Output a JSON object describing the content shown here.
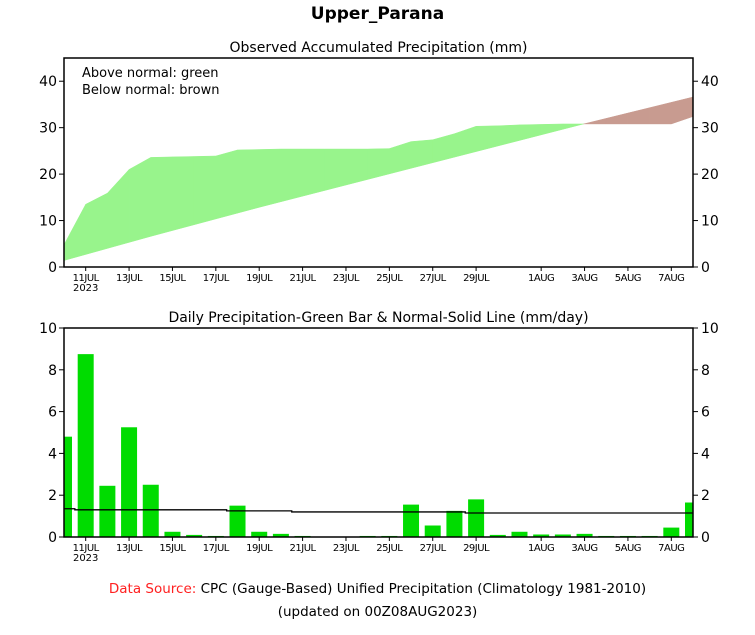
{
  "title": "Upper_Parana",
  "footer": {
    "source_label": "Data Source:",
    "source_text": " CPC (Gauge-Based) Unified Precipitation (Climatology 1981-2010)",
    "updated": "(updated on 00Z08AUG2023)"
  },
  "colors": {
    "above_normal": "#98f48c",
    "below_normal": "#c89b90",
    "bar": "#00dc00",
    "axis": "#000000",
    "source_label": "#ff2020"
  },
  "chart_data": [
    {
      "type": "area",
      "title": "Observed Accumulated Precipitation (mm)",
      "legend": [
        "Above normal: green",
        "Below normal: brown"
      ],
      "legend_position": "top-left",
      "ylim": [
        0,
        45
      ],
      "yticks": [
        0,
        10,
        20,
        30,
        40
      ],
      "xtick_labels": [
        {
          "day": 1,
          "label": "11JUL",
          "sub": "2023"
        },
        {
          "day": 3,
          "label": "13JUL"
        },
        {
          "day": 5,
          "label": "15JUL"
        },
        {
          "day": 7,
          "label": "17JUL"
        },
        {
          "day": 9,
          "label": "19JUL"
        },
        {
          "day": 11,
          "label": "21JUL"
        },
        {
          "day": 13,
          "label": "23JUL"
        },
        {
          "day": 15,
          "label": "25JUL"
        },
        {
          "day": 17,
          "label": "27JUL"
        },
        {
          "day": 19,
          "label": "29JUL"
        },
        {
          "day": 22,
          "label": "1AUG"
        },
        {
          "day": 24,
          "label": "3AUG"
        },
        {
          "day": 26,
          "label": "5AUG"
        },
        {
          "day": 28,
          "label": "7AUG"
        }
      ],
      "x_start": "10JUL2023",
      "x_end": "8AUG2023",
      "series": [
        {
          "name": "Observed",
          "values": [
            4.8,
            13.5,
            15.9,
            21.0,
            23.6,
            23.7,
            23.8,
            23.9,
            25.2,
            25.3,
            25.4,
            25.4,
            25.4,
            25.4,
            25.4,
            25.5,
            27.0,
            27.4,
            28.7,
            30.3,
            30.4,
            30.6,
            30.7,
            30.8,
            30.8,
            30.8,
            30.8,
            30.8,
            30.8,
            32.4
          ]
        },
        {
          "name": "Normal",
          "values": [
            1.4,
            2.7,
            4.0,
            5.3,
            6.6,
            7.85,
            9.1,
            10.35,
            11.6,
            12.85,
            14.05,
            15.25,
            16.45,
            17.65,
            18.85,
            20.05,
            21.25,
            22.45,
            23.65,
            24.85,
            26.05,
            27.25,
            28.45,
            29.65,
            30.85,
            32.0,
            33.15,
            34.3,
            35.45,
            36.6
          ]
        }
      ]
    },
    {
      "type": "bar",
      "title": "Daily Precipitation-Green Bar & Normal-Solid Line (mm/day)",
      "ylim": [
        0,
        10
      ],
      "yticks": [
        0,
        2,
        4,
        6,
        8,
        10
      ],
      "xtick_labels": [
        {
          "day": 1,
          "label": "11JUL",
          "sub": "2023"
        },
        {
          "day": 3,
          "label": "13JUL"
        },
        {
          "day": 5,
          "label": "15JUL"
        },
        {
          "day": 7,
          "label": "17JUL"
        },
        {
          "day": 9,
          "label": "19JUL"
        },
        {
          "day": 11,
          "label": "21JUL"
        },
        {
          "day": 13,
          "label": "23JUL"
        },
        {
          "day": 15,
          "label": "25JUL"
        },
        {
          "day": 17,
          "label": "27JUL"
        },
        {
          "day": 19,
          "label": "29JUL"
        },
        {
          "day": 22,
          "label": "1AUG"
        },
        {
          "day": 24,
          "label": "3AUG"
        },
        {
          "day": 26,
          "label": "5AUG"
        },
        {
          "day": 28,
          "label": "7AUG"
        }
      ],
      "series": [
        {
          "name": "Daily Precipitation",
          "values": [
            4.8,
            8.75,
            2.45,
            5.25,
            2.5,
            0.25,
            0.1,
            0.05,
            1.5,
            0.25,
            0.15,
            0.05,
            0,
            0,
            0.05,
            0.05,
            1.55,
            0.55,
            1.25,
            1.8,
            0.1,
            0.25,
            0.12,
            0.12,
            0.15,
            0.05,
            0.05,
            0.05,
            0.45,
            1.65
          ]
        },
        {
          "name": "Normal",
          "values": [
            1.35,
            1.3,
            1.3,
            1.3,
            1.3,
            1.3,
            1.3,
            1.3,
            1.25,
            1.25,
            1.25,
            1.2,
            1.2,
            1.2,
            1.2,
            1.2,
            1.2,
            1.2,
            1.2,
            1.15,
            1.15,
            1.15,
            1.15,
            1.15,
            1.15,
            1.15,
            1.15,
            1.15,
            1.15,
            1.15
          ]
        }
      ]
    }
  ]
}
